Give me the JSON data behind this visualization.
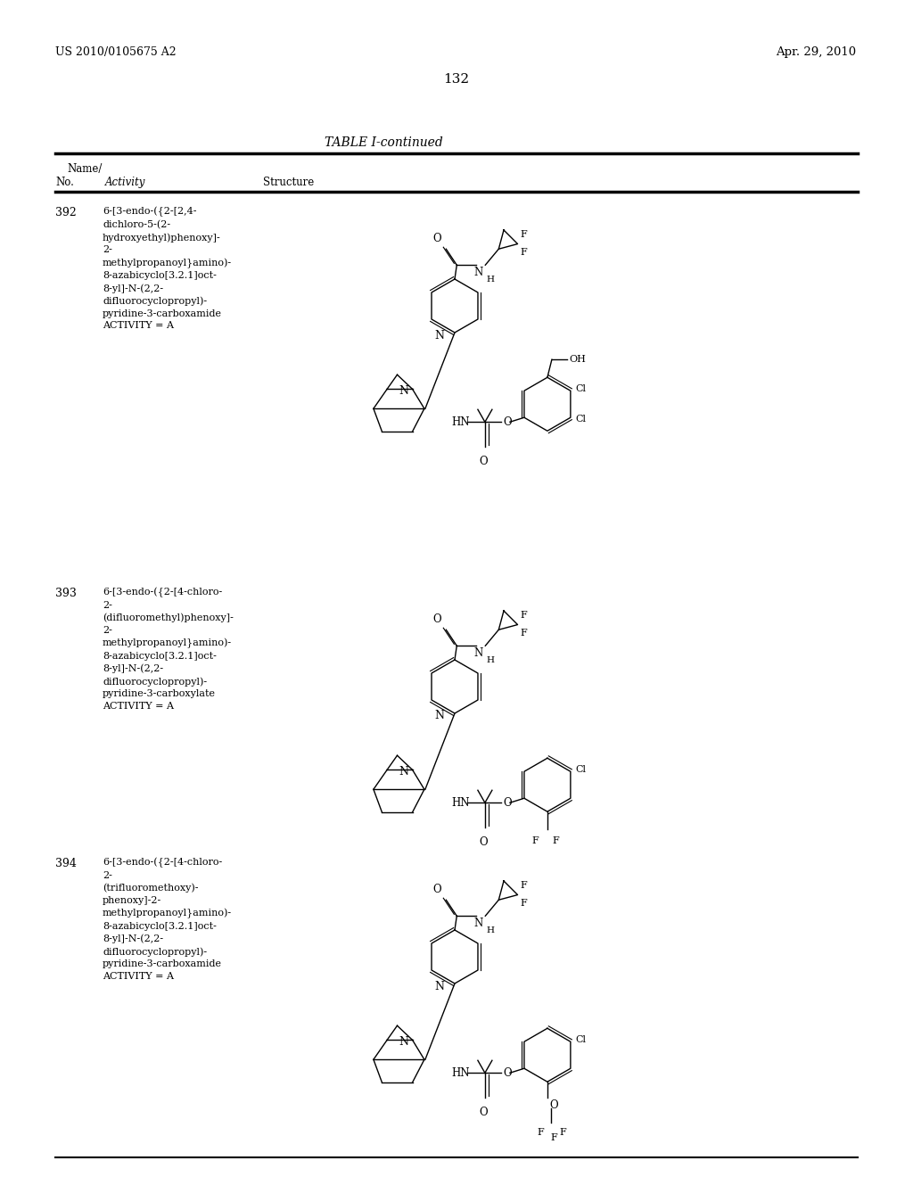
{
  "page_number": "132",
  "patent_number": "US 2010/0105675 A2",
  "patent_date": "Apr. 29, 2010",
  "table_title": "TABLE I-continued",
  "background_color": "#ffffff",
  "text_color": "#000000",
  "entry_392_name": "6-[3-endo-({2-[2,4-\ndichloro-5-(2-\nhydroxyethyl)phenoxy]-\n2-\nmethylpropanoyl}amino)-\n8-azabicyclo[3.2.1]oct-\n8-yl]-N-(2,2-\ndifluorocyclopropyl)-\npyridine-3-carboxamide\nACTIVITY = A",
  "entry_393_name": "6-[3-endo-({2-[4-chloro-\n2-\n(difluoromethyl)phenoxy]-\n2-\nmethylpropanoyl}amino)-\n8-azabicyclo[3.2.1]oct-\n8-yl]-N-(2,2-\ndifluorocyclopropyl)-\npyridine-3-carboxylate\nACTIVITY = A",
  "entry_394_name": "6-[3-endo-({2-[4-chloro-\n2-\n(trifluoromethoxy)-\nphenoxy]-2-\nmethylpropanoyl}amino)-\n8-azabicyclo[3.2.1]oct-\n8-yl]-N-(2,2-\ndifluorocyclopropyl)-\npyridine-3-carboxamide\nACTIVITY = A"
}
